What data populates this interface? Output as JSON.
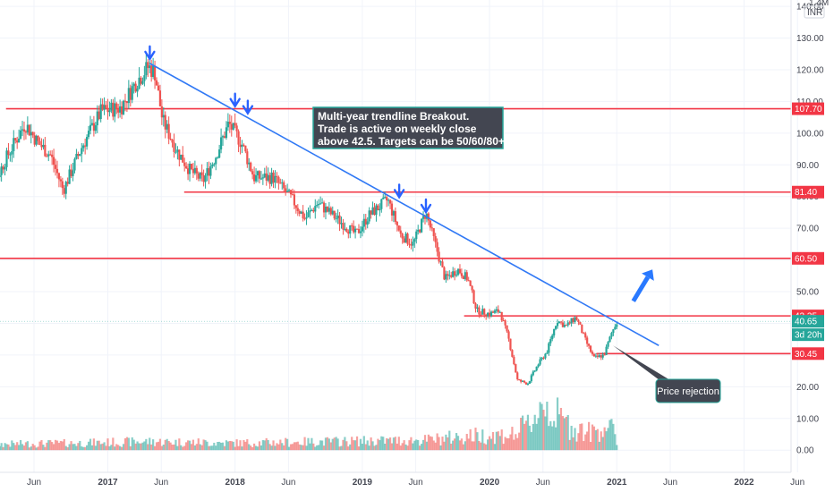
{
  "chart_data": {
    "type": "candlestick",
    "currency": "INR",
    "scale_note": "1.4M",
    "ylim": [
      -7,
      142
    ],
    "y_ticks": [
      0,
      10,
      20,
      30,
      40,
      50,
      60,
      70,
      80,
      90,
      100,
      110,
      120,
      130,
      140
    ],
    "y_tick_labels": [
      "0.00",
      "10.00",
      "20.00",
      "30.00",
      "",
      "50.00",
      "60.00",
      "70.00",
      "80.00",
      "90.00",
      "100.00",
      "110.00",
      "120.00",
      "130.00",
      "140.00"
    ],
    "x_ticks": [
      {
        "t": 2016.42,
        "label": "Jun"
      },
      {
        "t": 2017.0,
        "label": "2017"
      },
      {
        "t": 2017.42,
        "label": "Jun"
      },
      {
        "t": 2018.0,
        "label": "2018"
      },
      {
        "t": 2018.42,
        "label": "Jun"
      },
      {
        "t": 2019.0,
        "label": "2019"
      },
      {
        "t": 2019.42,
        "label": "Jun"
      },
      {
        "t": 2020.0,
        "label": "2020"
      },
      {
        "t": 2020.42,
        "label": "Jun"
      },
      {
        "t": 2021.0,
        "label": "2021"
      },
      {
        "t": 2021.42,
        "label": "Jun"
      },
      {
        "t": 2022.0,
        "label": "2022"
      },
      {
        "t": 2022.42,
        "label": "Jun"
      }
    ],
    "price_path": [
      [
        2016.0,
        85
      ],
      [
        2016.08,
        82
      ],
      [
        2016.2,
        92
      ],
      [
        2016.35,
        103
      ],
      [
        2016.45,
        97
      ],
      [
        2016.55,
        93
      ],
      [
        2016.65,
        82
      ],
      [
        2016.8,
        96
      ],
      [
        2016.95,
        107
      ],
      [
        2017.1,
        108
      ],
      [
        2017.22,
        116
      ],
      [
        2017.32,
        121
      ],
      [
        2017.37,
        119
      ],
      [
        2017.43,
        104
      ],
      [
        2017.55,
        94
      ],
      [
        2017.65,
        88
      ],
      [
        2017.75,
        85
      ],
      [
        2017.85,
        93
      ],
      [
        2017.95,
        103
      ],
      [
        2018.05,
        97
      ],
      [
        2018.15,
        86
      ],
      [
        2018.3,
        86
      ],
      [
        2018.45,
        79
      ],
      [
        2018.55,
        73
      ],
      [
        2018.65,
        78
      ],
      [
        2018.8,
        73
      ],
      [
        2018.95,
        68
      ],
      [
        2019.05,
        74
      ],
      [
        2019.2,
        79
      ],
      [
        2019.3,
        68
      ],
      [
        2019.4,
        65
      ],
      [
        2019.5,
        75
      ],
      [
        2019.58,
        64
      ],
      [
        2019.65,
        54
      ],
      [
        2019.75,
        57
      ],
      [
        2019.83,
        54
      ],
      [
        2019.9,
        44
      ],
      [
        2020.0,
        43
      ],
      [
        2020.08,
        44
      ],
      [
        2020.15,
        35
      ],
      [
        2020.22,
        22
      ],
      [
        2020.3,
        21
      ],
      [
        2020.38,
        27
      ],
      [
        2020.45,
        31
      ],
      [
        2020.53,
        41
      ],
      [
        2020.6,
        39
      ],
      [
        2020.68,
        42
      ],
      [
        2020.75,
        35
      ],
      [
        2020.82,
        29
      ],
      [
        2020.9,
        30
      ],
      [
        2020.96,
        37
      ],
      [
        2021.0,
        40.65
      ]
    ],
    "volume_profile": [
      [
        2016.0,
        2
      ],
      [
        2016.8,
        2.5
      ],
      [
        2017.3,
        3
      ],
      [
        2018.0,
        2.5
      ],
      [
        2019.5,
        3.5
      ],
      [
        2019.85,
        5
      ],
      [
        2020.2,
        5.5
      ],
      [
        2020.33,
        10
      ],
      [
        2020.42,
        17
      ],
      [
        2020.52,
        12
      ],
      [
        2020.65,
        8
      ],
      [
        2020.8,
        6
      ],
      [
        2020.93,
        9
      ],
      [
        2021.0,
        4
      ]
    ],
    "levels": [
      {
        "price": 107.7,
        "label": "107.70",
        "t0": 2016.2
      },
      {
        "price": 81.4,
        "label": "81.40",
        "t0": 2017.6
      },
      {
        "price": 60.5,
        "label": "60.50",
        "t0": 2016.0
      },
      {
        "price": 42.35,
        "label": "42.35",
        "t0": 2019.8
      },
      {
        "price": 30.45,
        "label": "30.45",
        "t0": 2020.84
      }
    ],
    "last_price": {
      "price": 40.65,
      "label": "40.65",
      "countdown": "3d 20h"
    },
    "trendline": {
      "t0": 2017.33,
      "p0": 122,
      "t1": 2021.33,
      "p1": 33
    },
    "arrows": [
      2017.33,
      2018.0,
      2018.1,
      2019.29,
      2019.5
    ],
    "up_arrow": {
      "t0": 2021.13,
      "p0": 47,
      "t1": 2021.28,
      "p1": 57
    },
    "annotation": {
      "lines": [
        "Multi-year trendline Breakout.",
        "Trade is active on weekly close",
        " above 42.5. Targets can be 50/60/80++"
      ]
    },
    "callout": {
      "text": "Price rejection",
      "t": 2020.97,
      "p": 33
    }
  }
}
